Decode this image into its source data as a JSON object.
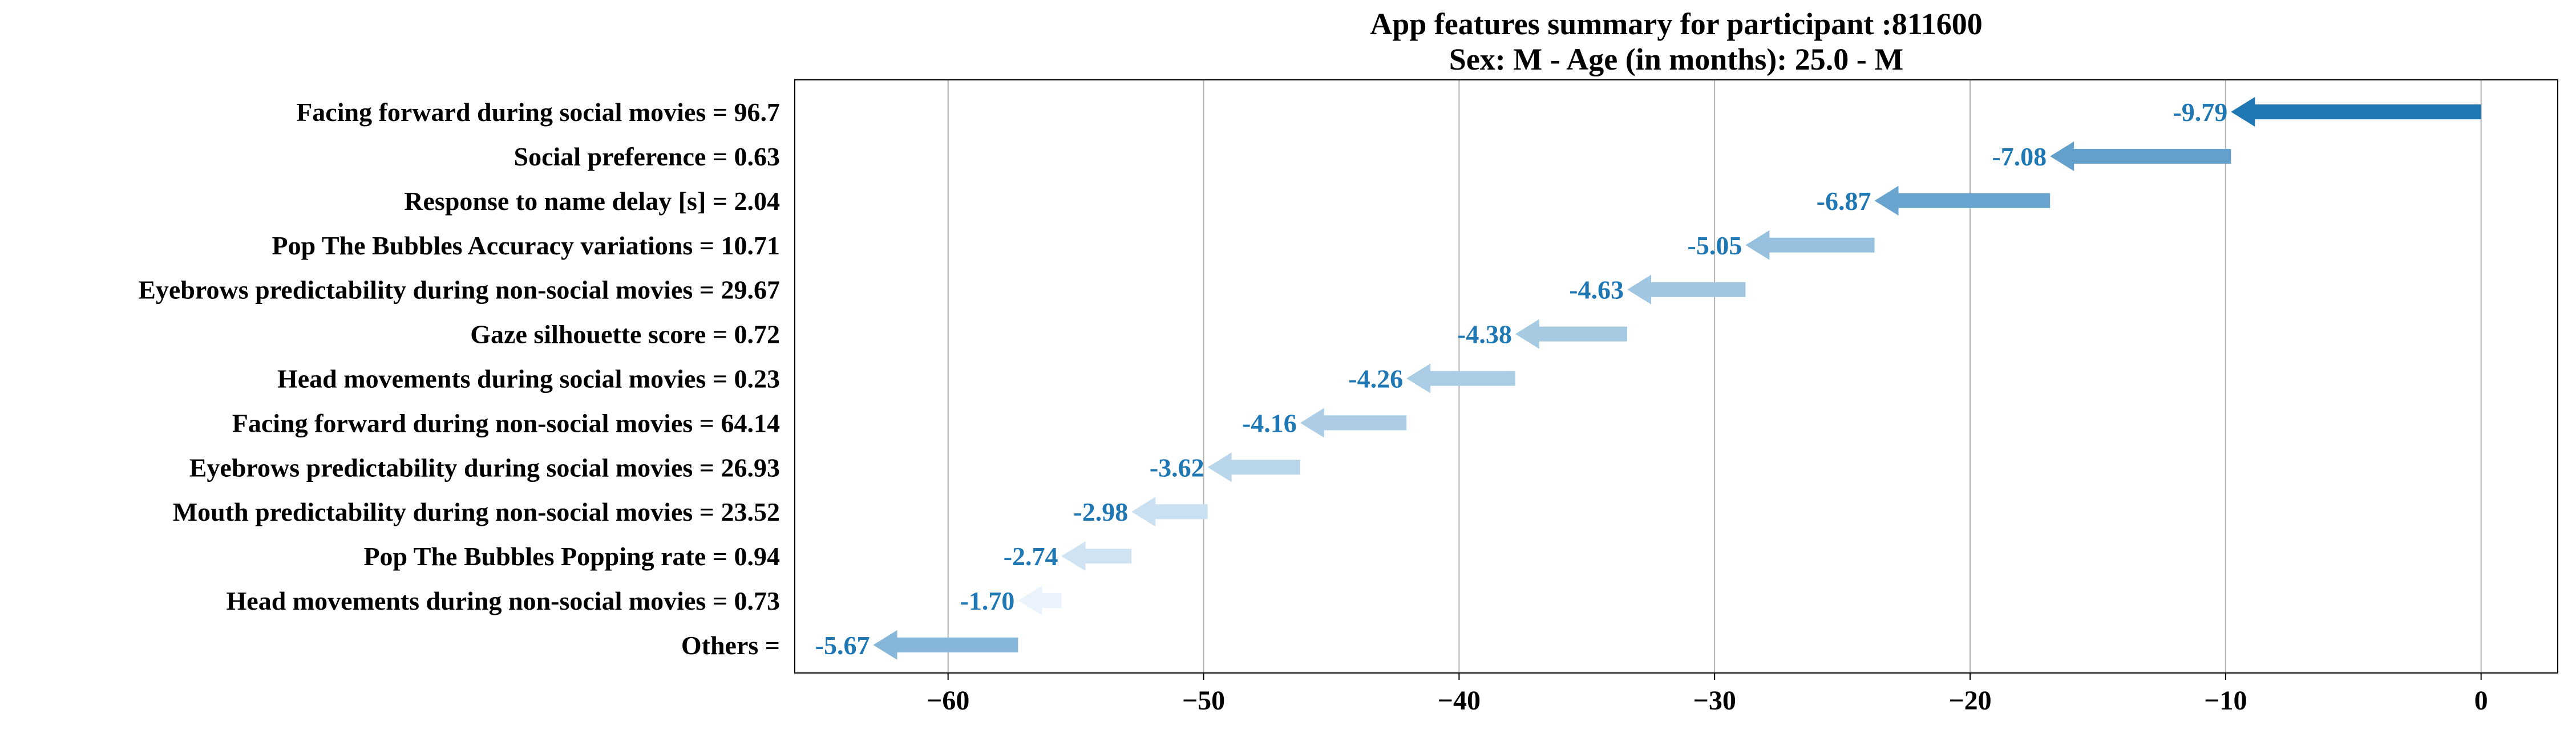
{
  "chart_data": {
    "type": "bar",
    "title": [
      "App features summary for participant :811600",
      "Sex: M - Age (in months): 25.0 - M"
    ],
    "xlabel": "",
    "ylabel": "",
    "xlim": [
      -66,
      3
    ],
    "xticks": [
      -60,
      -50,
      -40,
      -30,
      -20,
      -10,
      0
    ],
    "xtick_labels": [
      "−60",
      "−50",
      "−40",
      "−30",
      "−20",
      "−10",
      "0"
    ],
    "grid": "vertical",
    "colors": {
      "dark": "#1f77b4",
      "value_text": "#1f77b4",
      "light": "#eaf3fb"
    },
    "categories": [
      "Facing forward during social movies = 96.7",
      "Social preference = 0.63",
      "Response to name delay [s] = 2.04",
      "Pop The Bubbles Accuracy variations = 10.71",
      "Eyebrows predictability during non-social movies = 29.67",
      "Gaze silhouette score = 0.72",
      "Head movements during social movies = 0.23",
      "Facing forward during non-social movies = 64.14",
      "Eyebrows predictability during social movies = 26.93",
      "Mouth predictability during non-social movies = 23.52",
      "Pop The Bubbles Popping rate = 0.94",
      "Head movements during non-social movies = 0.73",
      "Others = "
    ],
    "values": [
      -9.79,
      -7.08,
      -6.87,
      -5.05,
      -4.63,
      -4.38,
      -4.26,
      -4.16,
      -3.62,
      -2.98,
      -2.74,
      -1.7,
      -5.67
    ],
    "value_labels": [
      "-9.79",
      "-7.08",
      "-6.87",
      "-5.05",
      "-4.63",
      "-4.38",
      "-4.26",
      "-4.16",
      "-3.62",
      "-2.98",
      "-2.74",
      "-1.70",
      "-5.67"
    ],
    "starts": [
      0,
      -9.79,
      -16.87,
      -23.74,
      -28.79,
      -33.42,
      -37.8,
      -42.06,
      -46.22,
      -49.84,
      -52.82,
      -55.56,
      -57.26
    ]
  }
}
